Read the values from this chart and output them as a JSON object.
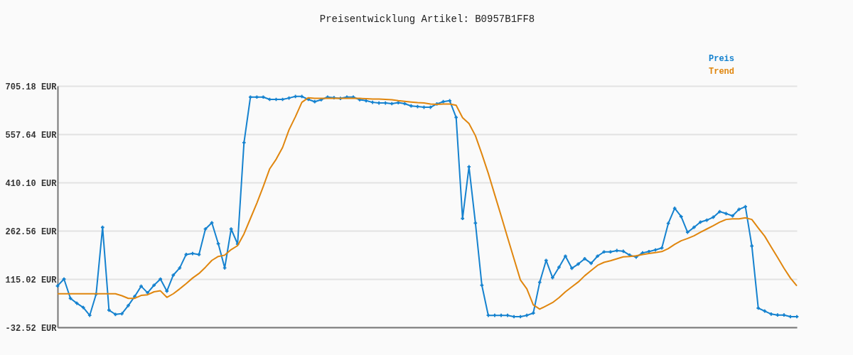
{
  "chart_data": {
    "type": "line",
    "title": "Preisentwicklung Artikel: B0957B1FF8",
    "categories": [
      null,
      null,
      null,
      null,
      null,
      null,
      null,
      null,
      null,
      null,
      null,
      null,
      null,
      null,
      null,
      null,
      null,
      null,
      null,
      null,
      null,
      null,
      null,
      null,
      null,
      null,
      null,
      null,
      null,
      null,
      null,
      null,
      null,
      null,
      null,
      null,
      null,
      null,
      null,
      null,
      null,
      null,
      null,
      null,
      null,
      null,
      null,
      null,
      null,
      null,
      null,
      null,
      null,
      null,
      null,
      null,
      null,
      null,
      null,
      null,
      null,
      null,
      null,
      null,
      null,
      null,
      null,
      null,
      null,
      null,
      null,
      null,
      null,
      null,
      null,
      null,
      null,
      null,
      null,
      null,
      null,
      null,
      null,
      null,
      null,
      null,
      null,
      null,
      null,
      null,
      null,
      null,
      null,
      null,
      null,
      null,
      null,
      null,
      null,
      null,
      null,
      null,
      null,
      null,
      null,
      null,
      null,
      null,
      null,
      null,
      null,
      null,
      null,
      null,
      null,
      null
    ],
    "series": [
      {
        "name": "Preis",
        "color": "#1582cf",
        "marker": "cross",
        "values": [
          94,
          115,
          56,
          41,
          28,
          4,
          69,
          273,
          20,
          7,
          9,
          34,
          62,
          93,
          73,
          96,
          115,
          78,
          127,
          149,
          190,
          193,
          190,
          268,
          287,
          223,
          149,
          268,
          222,
          532,
          671,
          671,
          671,
          664,
          664,
          664,
          668,
          673,
          673,
          664,
          657,
          663,
          671,
          669,
          667,
          671,
          671,
          663,
          660,
          655,
          653,
          653,
          651,
          654,
          651,
          644,
          642,
          640,
          640,
          650,
          657,
          660,
          609,
          300,
          458,
          286,
          96,
          4,
          4,
          4,
          4,
          0,
          0,
          4,
          11,
          105,
          172,
          119,
          151,
          185,
          148,
          161,
          177,
          163,
          185,
          198,
          198,
          202,
          200,
          188,
          182,
          195,
          199,
          204,
          210,
          285,
          331,
          306,
          258,
          273,
          289,
          295,
          304,
          321,
          315,
          308,
          328,
          336,
          216,
          26,
          17,
          8,
          5,
          5,
          0,
          0
        ]
      },
      {
        "name": "Trend",
        "color": "#e0860e",
        "values": [
          70,
          70,
          70,
          70,
          70,
          70,
          70,
          70,
          70,
          70,
          64,
          56,
          56,
          65,
          67,
          76,
          79,
          59,
          70,
          85,
          101,
          118,
          132,
          151,
          172,
          184,
          188,
          205,
          217,
          253,
          300,
          347,
          398,
          452,
          481,
          517,
          571,
          611,
          655,
          669,
          667,
          667,
          667,
          667,
          667,
          667,
          667,
          667,
          666,
          665,
          665,
          664,
          663,
          660,
          658,
          656,
          654,
          653,
          650,
          649,
          650,
          650,
          646,
          608,
          590,
          553,
          497,
          438,
          373,
          308,
          242,
          177,
          112,
          85,
          36,
          23,
          33,
          43,
          58,
          76,
          91,
          106,
          125,
          141,
          157,
          166,
          171,
          177,
          183,
          184,
          186,
          190,
          193,
          196,
          199,
          208,
          221,
          232,
          239,
          247,
          258,
          268,
          278,
          289,
          297,
          299,
          299,
          302,
          297,
          271,
          246,
          213,
          181,
          148,
          118,
          94
        ]
      }
    ],
    "ylim": [
      -32.52,
      705.18
    ],
    "yticks": [
      {
        "value": -32.52,
        "label": "-32.52 EUR"
      },
      {
        "value": 115.02,
        "label": "115.02 EUR"
      },
      {
        "value": 262.56,
        "label": "262.56 EUR"
      },
      {
        "value": 410.1,
        "label": "410.10 EUR"
      },
      {
        "value": 557.64,
        "label": "557.64 EUR"
      },
      {
        "value": 705.18,
        "label": "705.18 EUR"
      }
    ],
    "grid": "y",
    "legend": "top right",
    "tick_labels": "y",
    "line_style": "solid"
  }
}
